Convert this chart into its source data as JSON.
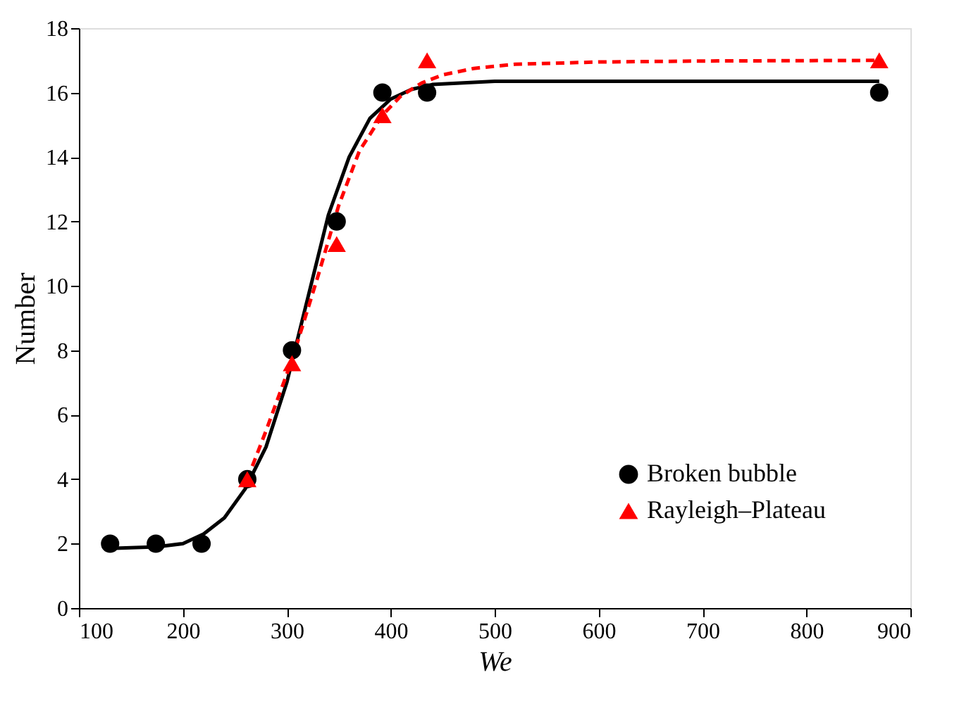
{
  "chart_data": {
    "type": "scatter",
    "xlabel": "We",
    "ylabel": "Number",
    "xlim": [
      100,
      900
    ],
    "xticks": [
      100,
      200,
      300,
      400,
      500,
      600,
      700,
      800,
      900
    ],
    "ylim": [
      0,
      18
    ],
    "yticks": [
      0,
      2,
      4,
      6,
      8,
      10,
      12,
      14,
      16,
      18
    ],
    "grid": false,
    "legend": "bottom right",
    "series": [
      {
        "name": "Broken bubble",
        "marker": "circle",
        "color": "#000000",
        "x": [
          130,
          174,
          218,
          262,
          305,
          348,
          392,
          435,
          870
        ],
        "values": [
          2,
          2,
          2,
          4,
          8,
          12,
          16,
          16,
          16
        ]
      },
      {
        "name": "Rayleigh–Plateau",
        "marker": "triangle",
        "color": "#ff0000",
        "x": [
          262,
          305,
          348,
          392,
          435,
          870
        ],
        "values": [
          4,
          7.6,
          11.3,
          15.3,
          17,
          17
        ]
      },
      {
        "type": "line",
        "line_style": "solid",
        "color": "#000000",
        "x": [
          130,
          175,
          200,
          220,
          240,
          260,
          280,
          300,
          320,
          340,
          360,
          380,
          400,
          420,
          440,
          470,
          500,
          600,
          870
        ],
        "values": [
          1.85,
          1.9,
          2.0,
          2.3,
          2.8,
          3.7,
          5.0,
          7.0,
          9.6,
          12.2,
          14.0,
          15.2,
          15.8,
          16.1,
          16.25,
          16.3,
          16.35,
          16.35,
          16.35
        ]
      },
      {
        "type": "line",
        "line_style": "dashed",
        "color": "#ff0000",
        "x": [
          262,
          280,
          305,
          330,
          350,
          370,
          392,
          410,
          430,
          450,
          480,
          520,
          600,
          700,
          870
        ],
        "values": [
          4.0,
          5.5,
          7.7,
          10.3,
          12.5,
          14.2,
          15.3,
          15.9,
          16.3,
          16.55,
          16.75,
          16.88,
          16.95,
          16.98,
          17.0
        ]
      }
    ]
  }
}
